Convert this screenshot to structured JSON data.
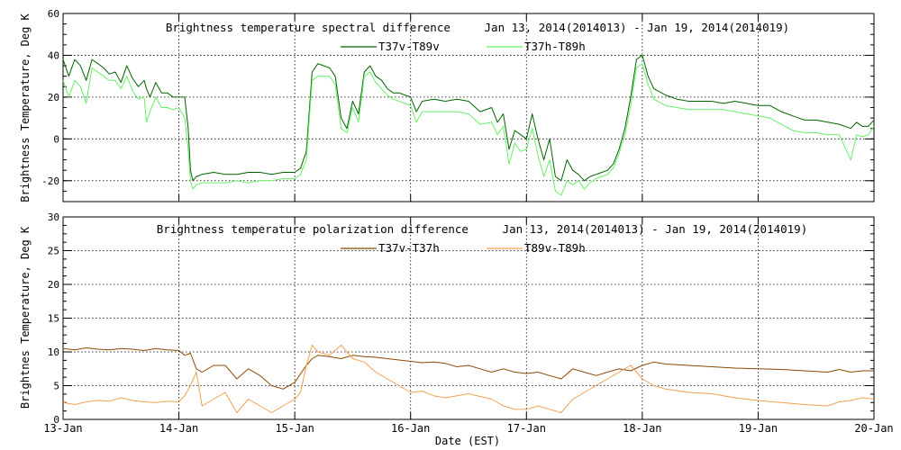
{
  "x_axis": {
    "label": "Date (EST)",
    "tick_labels": [
      "13-Jan",
      "14-Jan",
      "15-Jan",
      "16-Jan",
      "17-Jan",
      "18-Jan",
      "19-Jan",
      "20-Jan"
    ]
  },
  "chart_data": [
    {
      "type": "line",
      "title": "Brightness temperature spectral difference     Jan 13, 2014(2014013) - Jan 19, 2014(2014019)",
      "ylabel": "Brightness Temperature, Deg K",
      "xlim": [
        0,
        7
      ],
      "ylim": [
        -30,
        60
      ],
      "yticks": [
        -20,
        0,
        20,
        40,
        60
      ],
      "grid": true,
      "legend": "top-center",
      "series": [
        {
          "name": "T37v-T89v",
          "color": "#006400",
          "x": [
            0,
            0.05,
            0.1,
            0.15,
            0.2,
            0.25,
            0.3,
            0.35,
            0.4,
            0.45,
            0.5,
            0.55,
            0.6,
            0.65,
            0.7,
            0.72,
            0.75,
            0.8,
            0.85,
            0.9,
            0.95,
            1.0,
            1.05,
            1.08,
            1.1,
            1.12,
            1.15,
            1.2,
            1.3,
            1.4,
            1.5,
            1.6,
            1.7,
            1.8,
            1.9,
            2.0,
            2.05,
            2.1,
            2.15,
            2.2,
            2.25,
            2.3,
            2.35,
            2.4,
            2.45,
            2.5,
            2.55,
            2.6,
            2.65,
            2.7,
            2.75,
            2.8,
            2.85,
            2.9,
            2.95,
            3.0,
            3.05,
            3.1,
            3.2,
            3.3,
            3.4,
            3.5,
            3.6,
            3.7,
            3.75,
            3.8,
            3.85,
            3.9,
            3.95,
            4.0,
            4.05,
            4.1,
            4.15,
            4.2,
            4.25,
            4.3,
            4.35,
            4.4,
            4.45,
            4.5,
            4.55,
            4.6,
            4.65,
            4.7,
            4.75,
            4.8,
            4.85,
            4.9,
            4.95,
            5.0,
            5.05,
            5.1,
            5.2,
            5.3,
            5.4,
            5.5,
            5.6,
            5.7,
            5.8,
            5.9,
            6.0,
            6.1,
            6.2,
            6.3,
            6.4,
            6.5,
            6.6,
            6.7,
            6.8,
            6.85,
            6.9,
            6.95,
            7.0
          ],
          "values": [
            38,
            30,
            38,
            35,
            28,
            38,
            36,
            34,
            31,
            32,
            27,
            35,
            29,
            25,
            28,
            24,
            20,
            27,
            22,
            22,
            20,
            20,
            20,
            5,
            -15,
            -20,
            -18,
            -17,
            -16,
            -17,
            -17,
            -16,
            -16,
            -17,
            -16,
            -16,
            -14,
            -6,
            32,
            36,
            35,
            34,
            30,
            10,
            5,
            18,
            12,
            32,
            35,
            30,
            28,
            24,
            22,
            22,
            21,
            20,
            13,
            18,
            19,
            18,
            19,
            18,
            13,
            15,
            8,
            12,
            -5,
            4,
            2,
            0,
            12,
            0,
            -10,
            0,
            -18,
            -20,
            -10,
            -15,
            -17,
            -20,
            -18,
            -17,
            -16,
            -15,
            -12,
            -5,
            5,
            20,
            38,
            40,
            30,
            24,
            21,
            19,
            18,
            18,
            18,
            17,
            18,
            17,
            16,
            16,
            13,
            11,
            9,
            9,
            8,
            7,
            5,
            8,
            6,
            6,
            9
          ]
        },
        {
          "name": "T37h-T89h",
          "color": "#66ee66",
          "x": [
            0,
            0.05,
            0.1,
            0.15,
            0.2,
            0.25,
            0.3,
            0.35,
            0.4,
            0.45,
            0.5,
            0.55,
            0.6,
            0.65,
            0.7,
            0.72,
            0.75,
            0.8,
            0.85,
            0.9,
            0.95,
            1.0,
            1.05,
            1.08,
            1.1,
            1.12,
            1.15,
            1.2,
            1.3,
            1.4,
            1.5,
            1.6,
            1.7,
            1.8,
            1.9,
            2.0,
            2.05,
            2.1,
            2.15,
            2.2,
            2.25,
            2.3,
            2.35,
            2.4,
            2.45,
            2.5,
            2.55,
            2.6,
            2.65,
            2.7,
            2.75,
            2.8,
            2.85,
            2.9,
            2.95,
            3.0,
            3.05,
            3.1,
            3.2,
            3.3,
            3.4,
            3.5,
            3.6,
            3.7,
            3.75,
            3.8,
            3.85,
            3.9,
            3.95,
            4.0,
            4.05,
            4.1,
            4.15,
            4.2,
            4.25,
            4.3,
            4.35,
            4.4,
            4.45,
            4.5,
            4.55,
            4.6,
            4.65,
            4.7,
            4.75,
            4.8,
            4.85,
            4.9,
            4.95,
            5.0,
            5.05,
            5.1,
            5.2,
            5.3,
            5.4,
            5.5,
            5.6,
            5.7,
            5.8,
            5.9,
            6.0,
            6.1,
            6.2,
            6.3,
            6.4,
            6.5,
            6.6,
            6.7,
            6.8,
            6.85,
            6.9,
            6.95,
            7.0
          ],
          "values": [
            28,
            20,
            28,
            25,
            17,
            34,
            32,
            30,
            28,
            28,
            24,
            30,
            23,
            19,
            20,
            8,
            13,
            20,
            15,
            15,
            14,
            15,
            10,
            -5,
            -20,
            -24,
            -22,
            -21,
            -21,
            -21,
            -20,
            -21,
            -20,
            -20,
            -19,
            -19,
            -17,
            -10,
            28,
            30,
            30,
            30,
            26,
            5,
            3,
            15,
            8,
            30,
            32,
            27,
            24,
            21,
            19,
            18,
            17,
            16,
            8,
            13,
            13,
            13,
            13,
            12,
            7,
            8,
            2,
            6,
            -12,
            -2,
            -6,
            -5,
            5,
            -8,
            -18,
            -10,
            -25,
            -27,
            -20,
            -22,
            -20,
            -24,
            -21,
            -19,
            -18,
            -17,
            -14,
            -7,
            2,
            16,
            34,
            36,
            26,
            19,
            16,
            15,
            14,
            14,
            14,
            14,
            13,
            12,
            11,
            10,
            7,
            4,
            3,
            3,
            2,
            2,
            -10,
            2,
            1,
            2,
            6
          ]
        }
      ]
    },
    {
      "type": "line",
      "title": "Brightness temperature polarization difference     Jan 13, 2014(2014013) - Jan 19, 2014(2014019)",
      "ylabel": "Brightnes Temperature, Deg K",
      "xlim": [
        0,
        7
      ],
      "ylim": [
        0,
        30
      ],
      "yticks": [
        0,
        5,
        10,
        15,
        20,
        25,
        30
      ],
      "grid": true,
      "legend": "top-center",
      "series": [
        {
          "name": "T37v-T37h",
          "color": "#8b4a00",
          "x": [
            0,
            0.1,
            0.2,
            0.3,
            0.4,
            0.5,
            0.6,
            0.7,
            0.8,
            0.9,
            1.0,
            1.05,
            1.1,
            1.15,
            1.2,
            1.3,
            1.4,
            1.5,
            1.6,
            1.7,
            1.8,
            1.9,
            2.0,
            2.1,
            2.15,
            2.2,
            2.3,
            2.4,
            2.5,
            2.6,
            2.7,
            2.8,
            2.9,
            3.0,
            3.1,
            3.2,
            3.3,
            3.4,
            3.5,
            3.6,
            3.7,
            3.8,
            3.9,
            4.0,
            4.1,
            4.2,
            4.3,
            4.4,
            4.5,
            4.6,
            4.7,
            4.8,
            4.9,
            5.0,
            5.1,
            5.2,
            5.4,
            5.6,
            5.8,
            6.0,
            6.2,
            6.4,
            6.6,
            6.7,
            6.8,
            6.9,
            7.0
          ],
          "values": [
            10.5,
            10.3,
            10.6,
            10.4,
            10.3,
            10.5,
            10.4,
            10.2,
            10.5,
            10.3,
            10.2,
            9.5,
            9.8,
            7.5,
            7,
            8,
            8,
            6,
            7.5,
            6.5,
            5,
            4.5,
            5.5,
            8,
            9,
            9.5,
            9.3,
            9,
            9.5,
            9.3,
            9.2,
            9,
            8.8,
            8.6,
            8.4,
            8.5,
            8.3,
            7.8,
            8,
            7.5,
            7,
            7.5,
            7,
            6.8,
            7,
            6.5,
            6,
            7.5,
            7,
            6.5,
            7,
            7.5,
            7.2,
            8,
            8.5,
            8.2,
            8,
            7.8,
            7.6,
            7.5,
            7.4,
            7.2,
            7,
            7.4,
            7,
            7.2,
            7.2
          ]
        },
        {
          "name": "T89v-T89h",
          "color": "#f0a050",
          "x": [
            0,
            0.1,
            0.2,
            0.3,
            0.4,
            0.5,
            0.6,
            0.7,
            0.8,
            0.9,
            1.0,
            1.05,
            1.1,
            1.15,
            1.2,
            1.3,
            1.4,
            1.5,
            1.6,
            1.7,
            1.8,
            1.9,
            2.0,
            2.05,
            2.1,
            2.15,
            2.2,
            2.3,
            2.4,
            2.5,
            2.6,
            2.7,
            2.8,
            2.9,
            3.0,
            3.1,
            3.2,
            3.3,
            3.4,
            3.5,
            3.6,
            3.7,
            3.8,
            3.9,
            4.0,
            4.1,
            4.2,
            4.3,
            4.4,
            4.5,
            4.6,
            4.7,
            4.8,
            4.9,
            5.0,
            5.1,
            5.2,
            5.4,
            5.6,
            5.8,
            6.0,
            6.2,
            6.4,
            6.6,
            6.7,
            6.8,
            6.9,
            7.0
          ],
          "values": [
            2.5,
            2.2,
            2.6,
            2.8,
            2.7,
            3.2,
            2.8,
            2.6,
            2.5,
            2.7,
            2.6,
            3.5,
            5,
            7,
            2,
            3,
            4,
            1,
            3,
            2,
            1,
            2,
            3,
            4,
            8,
            11,
            10,
            9.5,
            11,
            9,
            8.5,
            7,
            6,
            5,
            4,
            4.2,
            3.5,
            3.2,
            3.5,
            3.8,
            3.4,
            3,
            2,
            1.5,
            1.5,
            2,
            1.5,
            1,
            3,
            4,
            5,
            6,
            7,
            8,
            6,
            5,
            4.5,
            4,
            3.8,
            3.2,
            2.8,
            2.5,
            2.2,
            2,
            2.6,
            2.8,
            3.2,
            3
          ]
        }
      ]
    }
  ]
}
